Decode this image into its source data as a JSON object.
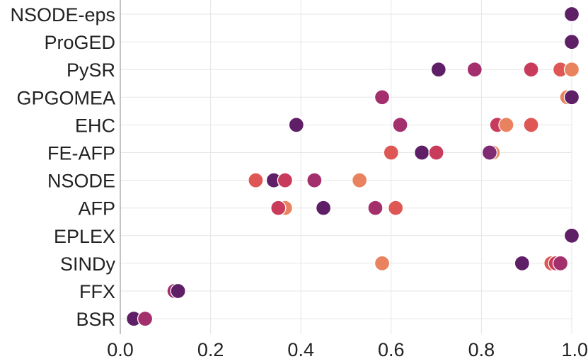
{
  "chart_data": {
    "type": "scatter",
    "title": "",
    "xlabel": "",
    "ylabel": "",
    "xlim": [
      0.0,
      1.0
    ],
    "x_ticks": [
      "0.0",
      "0.2",
      "0.4",
      "0.6",
      "0.8",
      "1.0"
    ],
    "grid": true,
    "categories": [
      "NSODE-eps",
      "ProGED",
      "PySR",
      "GPGOMEA",
      "EHC",
      "FE-AFP",
      "NSODE",
      "AFP",
      "EPLEX",
      "SINDy",
      "FFX",
      "BSR"
    ],
    "palette": [
      "#e9835f",
      "#df5754",
      "#c93b5b",
      "#a42f6d",
      "#7f2b72",
      "#5f1f66"
    ],
    "points": [
      {
        "category": "NSODE-eps",
        "x": 1.0,
        "c": 5
      },
      {
        "category": "ProGED",
        "x": 1.0,
        "c": 5
      },
      {
        "category": "PySR",
        "x": 0.705,
        "c": 5
      },
      {
        "category": "PySR",
        "x": 0.785,
        "c": 3
      },
      {
        "category": "PySR",
        "x": 0.91,
        "c": 2
      },
      {
        "category": "PySR",
        "x": 0.975,
        "c": 1
      },
      {
        "category": "PySR",
        "x": 1.0,
        "c": 0
      },
      {
        "category": "GPGOMEA",
        "x": 0.58,
        "c": 3
      },
      {
        "category": "GPGOMEA",
        "x": 0.99,
        "c": 0
      },
      {
        "category": "GPGOMEA",
        "x": 1.0,
        "c": 5
      },
      {
        "category": "EHC",
        "x": 0.39,
        "c": 5
      },
      {
        "category": "EHC",
        "x": 0.62,
        "c": 3
      },
      {
        "category": "EHC",
        "x": 0.835,
        "c": 2
      },
      {
        "category": "EHC",
        "x": 0.855,
        "c": 0
      },
      {
        "category": "EHC",
        "x": 0.91,
        "c": 1
      },
      {
        "category": "FE-AFP",
        "x": 0.6,
        "c": 1
      },
      {
        "category": "FE-AFP",
        "x": 0.668,
        "c": 5
      },
      {
        "category": "FE-AFP",
        "x": 0.7,
        "c": 2
      },
      {
        "category": "FE-AFP",
        "x": 0.825,
        "c": 0
      },
      {
        "category": "FE-AFP",
        "x": 0.818,
        "c": 4
      },
      {
        "category": "NSODE",
        "x": 0.3,
        "c": 1
      },
      {
        "category": "NSODE",
        "x": 0.34,
        "c": 5
      },
      {
        "category": "NSODE",
        "x": 0.365,
        "c": 2
      },
      {
        "category": "NSODE",
        "x": 0.43,
        "c": 3
      },
      {
        "category": "NSODE",
        "x": 0.53,
        "c": 0
      },
      {
        "category": "AFP",
        "x": 0.365,
        "c": 0
      },
      {
        "category": "AFP",
        "x": 0.35,
        "c": 2
      },
      {
        "category": "AFP",
        "x": 0.45,
        "c": 5
      },
      {
        "category": "AFP",
        "x": 0.565,
        "c": 3
      },
      {
        "category": "AFP",
        "x": 0.61,
        "c": 1
      },
      {
        "category": "EPLEX",
        "x": 1.0,
        "c": 5
      },
      {
        "category": "SINDy",
        "x": 0.58,
        "c": 0
      },
      {
        "category": "SINDy",
        "x": 0.89,
        "c": 5
      },
      {
        "category": "SINDy",
        "x": 0.955,
        "c": 1
      },
      {
        "category": "SINDy",
        "x": 0.965,
        "c": 2
      },
      {
        "category": "SINDy",
        "x": 0.975,
        "c": 3
      },
      {
        "category": "FFX",
        "x": 0.12,
        "c": 3
      },
      {
        "category": "FFX",
        "x": 0.128,
        "c": 5
      },
      {
        "category": "BSR",
        "x": 0.03,
        "c": 5
      },
      {
        "category": "BSR",
        "x": 0.055,
        "c": 3
      }
    ]
  }
}
